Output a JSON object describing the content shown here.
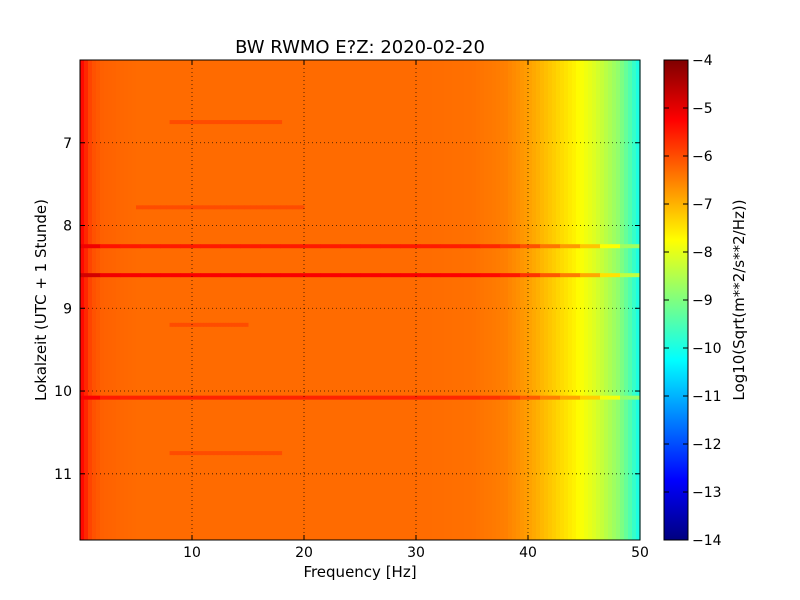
{
  "chart_data": {
    "type": "heatmap",
    "title": "BW RWMO E?Z: 2020-02-20",
    "xlabel": "Frequency [Hz]",
    "ylabel": "Lokalzeit (UTC + 1 Stunde)",
    "xlim": [
      0,
      50
    ],
    "ylim": [
      6,
      11.8
    ],
    "y_inverted": true,
    "x_ticks": [
      10,
      20,
      30,
      40,
      50
    ],
    "y_ticks": [
      7,
      8,
      9,
      10,
      11
    ],
    "grid": true,
    "grid_style": "dotted",
    "colormap": "jet",
    "colorbar": {
      "label": "Log10(Sqrt(m**2/s**2/Hz))",
      "range": [
        -14,
        -4
      ],
      "ticks": [
        -4,
        -5,
        -6,
        -7,
        -8,
        -9,
        -10,
        -11,
        -12,
        -13,
        -14
      ]
    },
    "background_value": -6.3,
    "frequency_profile": {
      "frequency": [
        0,
        0.5,
        1,
        2,
        5,
        10,
        20,
        30,
        35,
        38,
        40,
        42,
        44,
        46,
        48,
        49,
        50
      ],
      "value": [
        -5.2,
        -5.6,
        -6.0,
        -6.2,
        -6.3,
        -6.3,
        -6.3,
        -6.3,
        -6.35,
        -6.5,
        -6.8,
        -7.2,
        -7.6,
        -8.1,
        -8.8,
        -9.4,
        -10.1
      ]
    },
    "bands": [
      {
        "time": 8.25,
        "freq_range": [
          0,
          50
        ],
        "value": -5.5
      },
      {
        "time": 8.6,
        "freq_range": [
          0,
          50
        ],
        "value": -5.2
      },
      {
        "time": 10.08,
        "freq_range": [
          0,
          50
        ],
        "value": -5.6
      },
      {
        "time": 6.75,
        "freq_range": [
          8,
          18
        ],
        "value": -6.0
      },
      {
        "time": 7.78,
        "freq_range": [
          5,
          20
        ],
        "value": -6.0
      },
      {
        "time": 9.2,
        "freq_range": [
          8,
          15
        ],
        "value": -6.0
      },
      {
        "time": 10.75,
        "freq_range": [
          8,
          18
        ],
        "value": -6.0
      }
    ]
  }
}
